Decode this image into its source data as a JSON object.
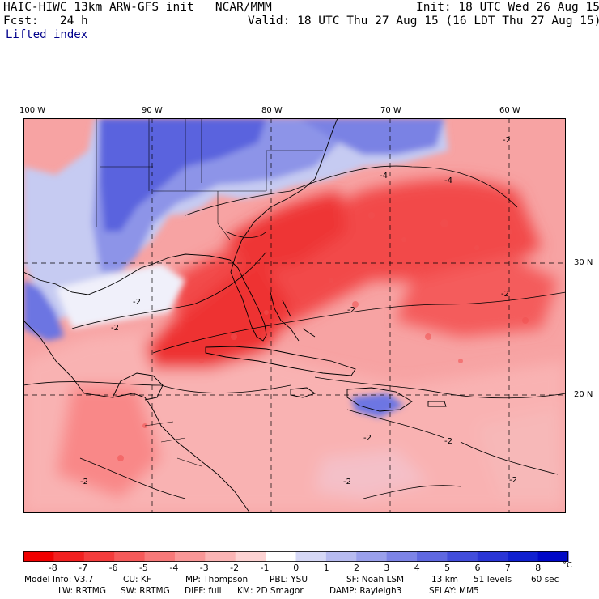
{
  "header": {
    "model_line": "HAIC-HIWC 13km ARW-GFS init   NCAR/MMM",
    "init": "Init: 18 UTC Wed 26 Aug 15",
    "fcst": "Fcst:   24 h",
    "valid": "Valid: 18 UTC Thu 27 Aug 15 (16 LDT Thu 27 Aug 15)",
    "field": "Lifted index"
  },
  "map": {
    "lon_labels": [
      "100 W",
      "90 W",
      "80 W",
      "70 W",
      "60 W"
    ],
    "lat_labels": [
      "30 N",
      "20 N"
    ],
    "contour_labels": [
      "-2",
      "-4",
      "-4",
      "-2",
      "-2",
      "-2",
      "-2",
      "-2",
      "-2",
      "-2",
      "-2",
      "-2"
    ],
    "colors": {
      "strong_neg": "#f40a0a",
      "mid_neg": "#f77777",
      "weak_neg": "#fccccc",
      "neutral": "#f3f3fb",
      "weak_pos": "#c7caf0",
      "mid_pos": "#7f86e7",
      "strong_pos": "#3340e0"
    }
  },
  "colorbar": {
    "ticks": [
      "-8",
      "-7",
      "-6",
      "-5",
      "-4",
      "-3",
      "-2",
      "-1",
      "0",
      "1",
      "2",
      "3",
      "4",
      "5",
      "6",
      "7",
      "8"
    ],
    "unit": "°C",
    "colors": [
      "#f00000",
      "#f22020",
      "#f43c3c",
      "#f65a5a",
      "#f77979",
      "#f99797",
      "#fbb5b5",
      "#fdd3d3",
      "#ffffff",
      "#d6d8f6",
      "#b7bbf0",
      "#9aa0ec",
      "#7d84e7",
      "#5f68e1",
      "#424ddc",
      "#2a35d6",
      "#1020d0",
      "#0008c8"
    ]
  },
  "footer": {
    "line1": [
      "Model Info: V3.7",
      "CU: KF",
      "MP: Thompson",
      "PBL: YSU",
      "SF: Noah LSM",
      "13 km",
      "51 levels",
      "60 sec"
    ],
    "line2": [
      "LW: RRTMG",
      "SW: RRTMG",
      "DIFF: full",
      "KM: 2D Smagor",
      "DAMP: Rayleigh3",
      "SFLAY: MM5"
    ]
  }
}
